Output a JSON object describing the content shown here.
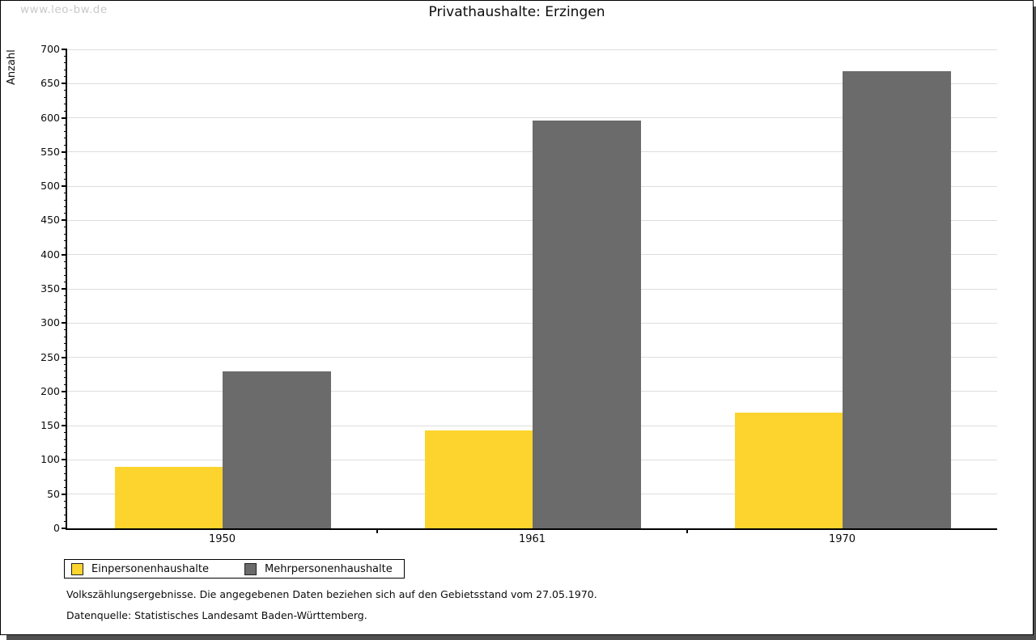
{
  "watermark": "www.leo-bw.de",
  "chart_data": {
    "type": "bar",
    "title": "Privathaushalte: Erzingen",
    "xlabel": "",
    "ylabel": "Anzahl",
    "categories": [
      "1950",
      "1961",
      "1970"
    ],
    "series": [
      {
        "name": "Einpersonenhaushalte",
        "color": "#fcd42d",
        "values": [
          90,
          143,
          169
        ]
      },
      {
        "name": "Mehrpersonenhaushalte",
        "color": "#6b6b6b",
        "values": [
          230,
          596,
          668
        ]
      }
    ],
    "ylim": [
      0,
      700
    ],
    "ytick_step": 50,
    "yminor_step": 10,
    "grid": true,
    "legend_position": "bottom-left"
  },
  "footnotes": [
    "Volkszählungsergebnisse. Die angegebenen Daten beziehen sich auf den Gebietsstand vom 27.05.1970.",
    "Datenquelle: Statistisches Landesamt Baden-Württemberg."
  ],
  "colors": {
    "gridline": "#dddddd",
    "axis": "#000000",
    "watermark": "#c9c9c9",
    "page_shadow": "#4f4f4f",
    "background": "#ffffff"
  }
}
